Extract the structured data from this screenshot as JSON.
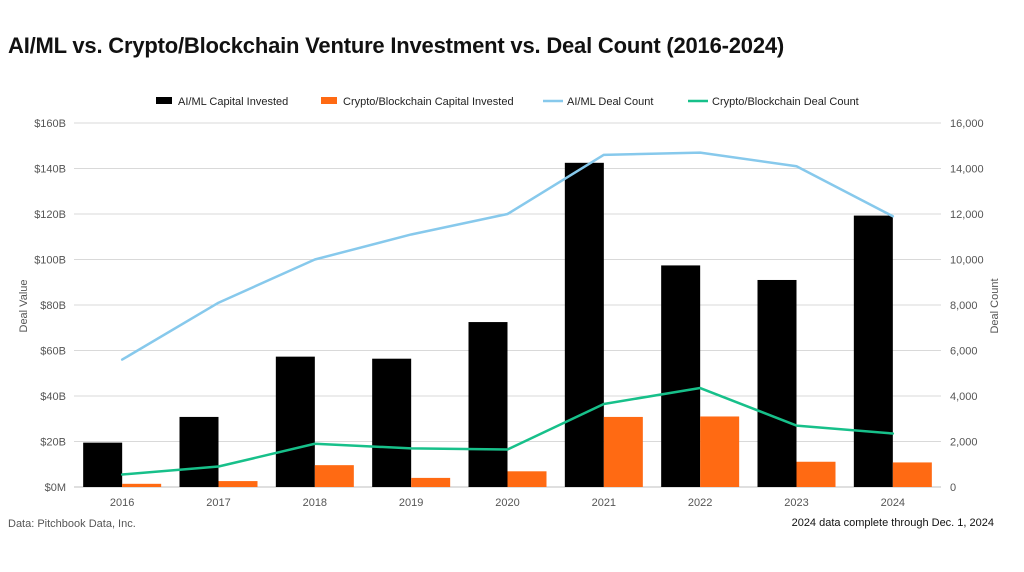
{
  "title": "AI/ML vs. Crypto/Blockchain Venture Investment vs. Deal Count (2016-2024)",
  "footer": {
    "source": "Data: Pitchbook Data, Inc.",
    "note": "2024 data complete through Dec. 1, 2024"
  },
  "colors": {
    "ai_capital": "#000000",
    "crypto_capital": "#ff6a13",
    "ai_deals": "#87c9ec",
    "crypto_deals": "#17c08a",
    "grid": "#d9d9d9"
  },
  "chart_data": {
    "type": "bar",
    "categories": [
      "2016",
      "2017",
      "2018",
      "2019",
      "2020",
      "2021",
      "2022",
      "2023",
      "2024"
    ],
    "ylabel": "Deal Value",
    "y2label": "Deal Count",
    "ylim": [
      0,
      160
    ],
    "y2lim": [
      0,
      16000
    ],
    "yticks": [
      "$0M",
      "$20B",
      "$40B",
      "$60B",
      "$80B",
      "$100B",
      "$120B",
      "$140B",
      "$160B"
    ],
    "y2ticks": [
      "0",
      "2,000",
      "4,000",
      "6,000",
      "8,000",
      "10,000",
      "12,000",
      "14,000",
      "16,000"
    ],
    "grid": true,
    "legend_position": "top",
    "series": [
      {
        "name": "AI/ML Capital Invested",
        "type": "bar",
        "axis": "left",
        "color": "#000000",
        "values": [
          19.5,
          30.8,
          57.3,
          56.4,
          72.5,
          142.5,
          97.4,
          91.0,
          119.3
        ]
      },
      {
        "name": "Crypto/Blockchain Capital Invested",
        "type": "bar",
        "axis": "left",
        "color": "#ff6a13",
        "values": [
          1.4,
          2.6,
          9.6,
          4.0,
          6.9,
          30.8,
          31.0,
          11.1,
          10.8
        ]
      },
      {
        "name": "AI/ML Deal Count",
        "type": "line",
        "axis": "right",
        "color": "#87c9ec",
        "values": [
          5600,
          8100,
          10000,
          11100,
          12000,
          14600,
          14700,
          14100,
          11900
        ]
      },
      {
        "name": "Crypto/Blockchain Deal Count",
        "type": "line",
        "axis": "right",
        "color": "#17c08a",
        "values": [
          550,
          900,
          1900,
          1700,
          1650,
          3650,
          4350,
          2700,
          2350
        ]
      }
    ]
  }
}
